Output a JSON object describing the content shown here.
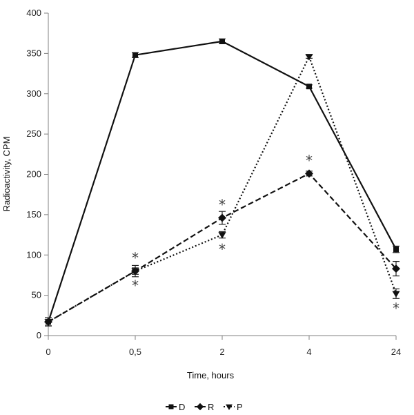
{
  "chart_data": {
    "type": "line",
    "xlabel": "Time, hours",
    "ylabel": "Radioactivity, CPM",
    "categories": [
      "0",
      "0,5",
      "2",
      "4",
      "24"
    ],
    "ylim": [
      0,
      400
    ],
    "yticks": [
      "0",
      "50",
      "100",
      "150",
      "200",
      "250",
      "300",
      "350",
      "400"
    ],
    "grid": false,
    "legend_position": "bottom-center",
    "series": [
      {
        "name": "D",
        "marker": "square",
        "line_style": "solid",
        "values": [
          17,
          348,
          365,
          309,
          107
        ],
        "errors": [
          5,
          3,
          3,
          2,
          4
        ]
      },
      {
        "name": "R",
        "marker": "diamond",
        "line_style": "dashed",
        "values": [
          17,
          80,
          146,
          201,
          83
        ],
        "errors": [
          5,
          7,
          8,
          3,
          9
        ]
      },
      {
        "name": "P",
        "marker": "triangle-down",
        "line_style": "dotted",
        "values": [
          17,
          80,
          125,
          346,
          52
        ],
        "errors": [
          5,
          4,
          4,
          2,
          6
        ]
      }
    ],
    "annotations": [
      {
        "text": "*",
        "category": "0,5",
        "value": 80,
        "position": "above",
        "series": "R"
      },
      {
        "text": "*",
        "category": "0,5",
        "value": 80,
        "position": "below",
        "series": "P"
      },
      {
        "text": "*",
        "category": "2",
        "value": 146,
        "position": "above",
        "series": "R"
      },
      {
        "text": "*",
        "category": "2",
        "value": 125,
        "position": "below",
        "series": "P"
      },
      {
        "text": "*",
        "category": "4",
        "value": 201,
        "position": "above",
        "series": "R"
      },
      {
        "text": "*",
        "category": "24",
        "value": 52,
        "position": "below",
        "series": "P"
      }
    ],
    "colors": {
      "line": "#111111",
      "axis": "#808080",
      "error_bar": "#222222"
    }
  }
}
